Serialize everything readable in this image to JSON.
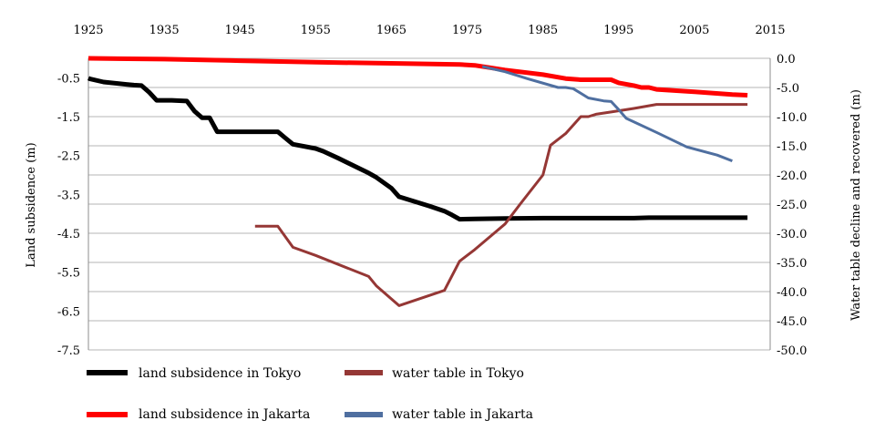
{
  "chart_data": {
    "type": "line",
    "title": "",
    "x_axis": {
      "range": [
        1925,
        2015
      ],
      "ticks": [
        1925,
        1935,
        1945,
        1955,
        1965,
        1975,
        1985,
        1995,
        2005,
        2015
      ],
      "position": "top"
    },
    "y_left": {
      "label": "Land subsidence (m)",
      "range": [
        -7.5,
        0
      ],
      "ticks": [
        "-0.5",
        "-1.5",
        "-2.5",
        "-3.5",
        "-4.5",
        "-5.5",
        "-6.5",
        "-7.5"
      ]
    },
    "y_right": {
      "label": "Water table decline and recovered (m)",
      "range": [
        -50,
        0
      ],
      "ticks": [
        "0.0",
        "-5.0",
        "-10.0",
        "-15.0",
        "-20.0",
        "-25.0",
        "-30.0",
        "-35.0",
        "-40.0",
        "-45.0",
        "-50.0"
      ]
    },
    "grid": true,
    "legend": "bottom",
    "series": [
      {
        "name": "land subsidence  in Tokyo",
        "axis": "left",
        "color": "#000000",
        "points": [
          [
            1925.0,
            -0.51
          ],
          [
            1925.2,
            -0.53
          ],
          [
            1927,
            -0.61
          ],
          [
            1930,
            -0.67
          ],
          [
            1931,
            -0.69
          ],
          [
            1932,
            -0.7
          ],
          [
            1933,
            -0.87
          ],
          [
            1934,
            -1.08
          ],
          [
            1935,
            -1.08
          ],
          [
            1936,
            -1.08
          ],
          [
            1937,
            -1.09
          ],
          [
            1938,
            -1.1
          ],
          [
            1939,
            -1.36
          ],
          [
            1940,
            -1.53
          ],
          [
            1941,
            -1.53
          ],
          [
            1942,
            -1.89
          ],
          [
            1943,
            -1.89
          ],
          [
            1945,
            -1.89
          ],
          [
            1948,
            -1.89
          ],
          [
            1950,
            -1.89
          ],
          [
            1951,
            -2.05
          ],
          [
            1952,
            -2.21
          ],
          [
            1955,
            -2.32
          ],
          [
            1956,
            -2.39
          ],
          [
            1958,
            -2.57
          ],
          [
            1962,
            -2.95
          ],
          [
            1963,
            -3.06
          ],
          [
            1965,
            -3.34
          ],
          [
            1966,
            -3.56
          ],
          [
            1968,
            -3.68
          ],
          [
            1970,
            -3.8
          ],
          [
            1972,
            -3.93
          ],
          [
            1973,
            -4.03
          ],
          [
            1974,
            -4.14
          ],
          [
            1976,
            -4.13
          ],
          [
            1980,
            -4.12
          ],
          [
            1985,
            -4.11
          ],
          [
            1990,
            -4.11
          ],
          [
            1994,
            -4.11
          ],
          [
            1997,
            -4.11
          ],
          [
            1999,
            -4.1
          ],
          [
            2005,
            -4.1
          ],
          [
            2012,
            -4.1
          ]
        ]
      },
      {
        "name": "water table in Tokyo",
        "axis": "right",
        "color": "#953735",
        "points": [
          [
            1947,
            -28.8
          ],
          [
            1949,
            -28.8
          ],
          [
            1950,
            -28.8
          ],
          [
            1952,
            -32.4
          ],
          [
            1955,
            -33.8
          ],
          [
            1962,
            -37.4
          ],
          [
            1963,
            -39.0
          ],
          [
            1966,
            -42.4
          ],
          [
            1972,
            -39.8
          ],
          [
            1974,
            -34.8
          ],
          [
            1976,
            -32.8
          ],
          [
            1980,
            -28.4
          ],
          [
            1982,
            -25.0
          ],
          [
            1985,
            -20.0
          ],
          [
            1986,
            -14.9
          ],
          [
            1988,
            -12.9
          ],
          [
            1990,
            -10.0
          ],
          [
            1991,
            -10.0
          ],
          [
            1992,
            -9.6
          ],
          [
            1994,
            -9.2
          ],
          [
            1997,
            -8.6
          ],
          [
            2000,
            -7.9
          ],
          [
            2005,
            -7.9
          ],
          [
            2012,
            -7.9
          ]
        ]
      },
      {
        "name": "land subsidence  in Jakarta",
        "axis": "left",
        "color": "#ff0000",
        "points": [
          [
            1925,
            0.0
          ],
          [
            1935,
            -0.02
          ],
          [
            1945,
            -0.06
          ],
          [
            1955,
            -0.1
          ],
          [
            1965,
            -0.13
          ],
          [
            1974,
            -0.16
          ],
          [
            1976,
            -0.18
          ],
          [
            1980,
            -0.3
          ],
          [
            1985,
            -0.42
          ],
          [
            1988,
            -0.52
          ],
          [
            1990,
            -0.55
          ],
          [
            1992,
            -0.55
          ],
          [
            1994,
            -0.55
          ],
          [
            1995,
            -0.63
          ],
          [
            1997,
            -0.7
          ],
          [
            1998,
            -0.75
          ],
          [
            1999,
            -0.75
          ],
          [
            2000,
            -0.8
          ],
          [
            2005,
            -0.86
          ],
          [
            2010,
            -0.93
          ],
          [
            2012,
            -0.95
          ]
        ]
      },
      {
        "name": "water table in Jakarta",
        "axis": "right",
        "color": "#4f6fa0",
        "points": [
          [
            1977,
            -1.4
          ],
          [
            1980,
            -2.3
          ],
          [
            1983,
            -3.5
          ],
          [
            1987,
            -5.0
          ],
          [
            1988,
            -5.0
          ],
          [
            1989,
            -5.2
          ],
          [
            1991,
            -6.8
          ],
          [
            1993,
            -7.3
          ],
          [
            1994,
            -7.4
          ],
          [
            1995,
            -8.8
          ],
          [
            1996,
            -10.3
          ],
          [
            2000,
            -12.7
          ],
          [
            2004,
            -15.2
          ],
          [
            2008,
            -16.6
          ],
          [
            2010,
            -17.6
          ]
        ]
      }
    ]
  }
}
